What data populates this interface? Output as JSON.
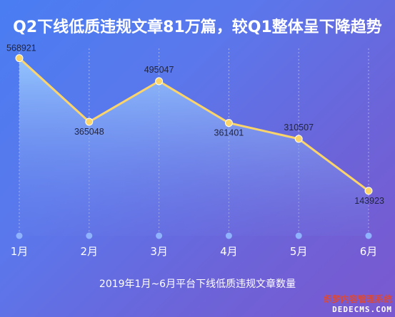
{
  "chart_data": {
    "type": "area",
    "title": "Q2下线低质违规文章81万篇，较Q1整体呈下降趋势",
    "caption": "2019年1月~6月平台下线低质违规文章数量",
    "categories": [
      "1月",
      "2月",
      "3月",
      "4月",
      "5月",
      "6月"
    ],
    "series": [
      {
        "values": [
          568921,
          365048,
          495047,
          361401,
          310507,
          143923
        ]
      }
    ],
    "ylim": [
      0,
      600000
    ],
    "grid": "vertical-dotted",
    "colors": {
      "line": "#fbd46a",
      "point": "#fbd46a",
      "area_top": "#9fd0ff",
      "area_bottom": "#6f7fe6",
      "axis_dot": "#8fb3ff"
    }
  },
  "watermark": {
    "line1": "织梦内容管理系统",
    "line2": "DEDECMS.COM"
  }
}
